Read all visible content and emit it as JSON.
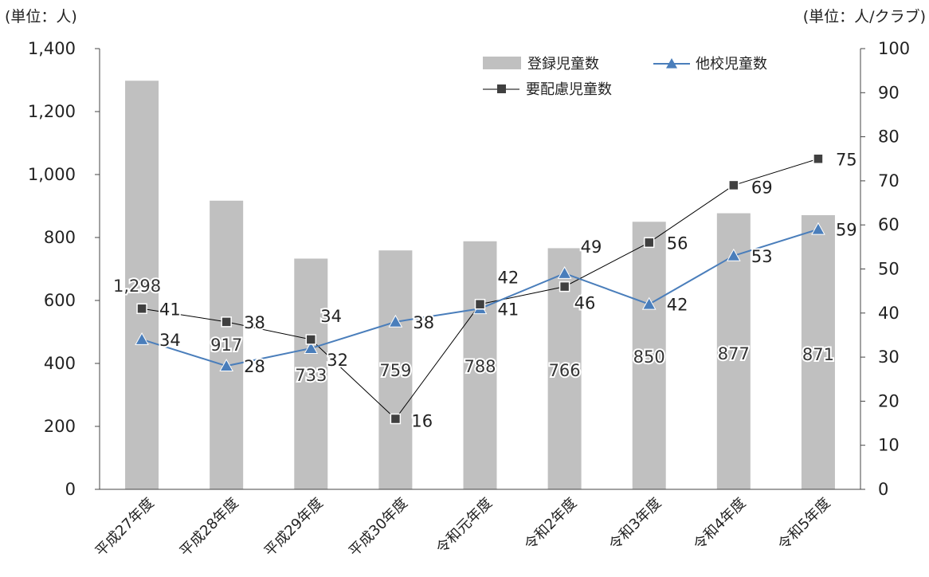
{
  "units": {
    "left": "(単位：人)",
    "right": "(単位：人/クラブ)"
  },
  "colors": {
    "bar": "#c0c0c0",
    "line_other": "#4a7ebb",
    "line_care": "#000000",
    "marker_care": "#404040"
  },
  "chart_data": {
    "type": "bar",
    "categories": [
      "平成27年度",
      "平成28年度",
      "平成29年度",
      "平成30年度",
      "令和元年度",
      "令和2年度",
      "令和3年度",
      "令和4年度",
      "令和5年度"
    ],
    "series": [
      {
        "name": "登録児童数",
        "type": "bar",
        "axis": "left",
        "values": [
          1298,
          917,
          733,
          759,
          788,
          766,
          850,
          877,
          871
        ],
        "labels": [
          "1,298",
          "917",
          "733",
          "759",
          "788",
          "766",
          "850",
          "877",
          "871"
        ]
      },
      {
        "name": "他校児童数",
        "type": "line",
        "axis": "right",
        "marker": "triangle",
        "values": [
          34,
          28,
          32,
          38,
          41,
          49,
          42,
          53,
          59
        ]
      },
      {
        "name": "要配慮児童数",
        "type": "line",
        "axis": "right",
        "marker": "square",
        "values": [
          41,
          38,
          34,
          16,
          42,
          46,
          56,
          69,
          75
        ]
      }
    ],
    "y_left": {
      "range": [
        0,
        1400
      ],
      "ticks": [
        "0",
        "200",
        "400",
        "600",
        "800",
        "1,000",
        "1,200",
        "1,400"
      ]
    },
    "y_right": {
      "range": [
        0,
        100
      ],
      "ticks": [
        "0",
        "10",
        "20",
        "30",
        "40",
        "50",
        "60",
        "70",
        "80",
        "90",
        "100"
      ]
    },
    "grid": false,
    "legend_position": "top-right"
  }
}
